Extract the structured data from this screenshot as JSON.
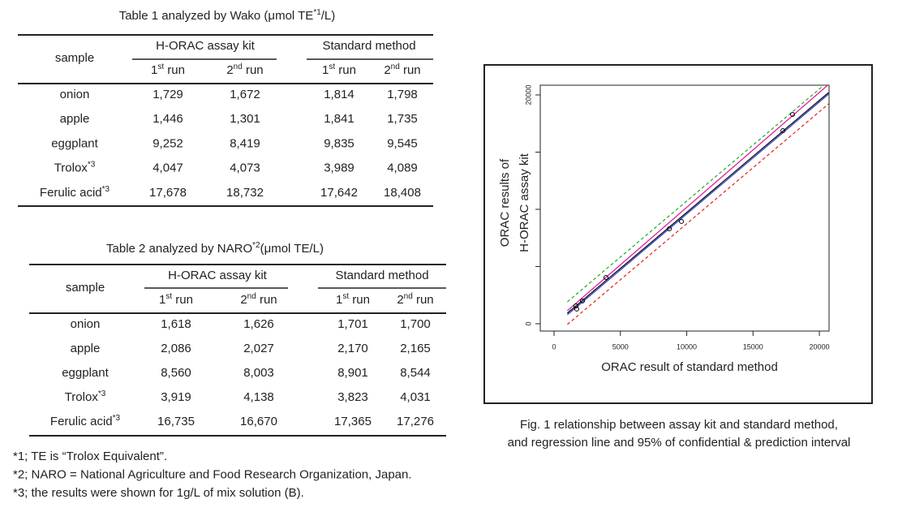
{
  "table1": {
    "title": {
      "text": "Table 1  analyzed by Wako (μmol TE",
      "sup": "*1",
      "tail": "/L)"
    },
    "header": {
      "sample": "sample",
      "groups": [
        "H-ORAC assay kit",
        "Standard method"
      ],
      "runs": [
        {
          "text": "1",
          "sup": "st",
          "tail": " run"
        },
        {
          "text": "2",
          "sup": "nd",
          "tail": " run"
        },
        {
          "text": "1",
          "sup": "st",
          "tail": " run"
        },
        {
          "text": "2",
          "sup": "nd",
          "tail": " run"
        }
      ]
    },
    "rows": [
      [
        "onion",
        "1,729",
        "1,672",
        "1,814",
        "1,798"
      ],
      [
        "apple",
        "1,446",
        "1,301",
        "1,841",
        "1,735"
      ],
      [
        "eggplant",
        "9,252",
        "8,419",
        "9,835",
        "9,545"
      ],
      [
        {
          "text": "Trolox",
          "sup": "*3"
        },
        "4,047",
        "4,073",
        "3,989",
        "4,089"
      ],
      [
        {
          "text": "Ferulic  acid",
          "sup": "*3"
        },
        "17,678",
        "18,732",
        "17,642",
        "18,408"
      ]
    ]
  },
  "table2": {
    "title": {
      "text": "Table 2  analyzed by NARO",
      "sup": "*2",
      "tail": "(μmol TE/L)"
    },
    "header": {
      "sample": "sample",
      "groups": [
        "H-ORAC assay kit",
        "Standard method"
      ],
      "runs": [
        {
          "text": "1",
          "sup": "st",
          "tail": " run"
        },
        {
          "text": "2",
          "sup": "nd",
          "tail": " run"
        },
        {
          "text": "1",
          "sup": "st",
          "tail": " run"
        },
        {
          "text": "2",
          "sup": "nd",
          "tail": " run"
        }
      ]
    },
    "rows": [
      [
        "onion",
        "1,618",
        "1,626",
        "1,701",
        "1,700"
      ],
      [
        "apple",
        "2,086",
        "2,027",
        "2,170",
        "2,165"
      ],
      [
        "eggplant",
        "8,560",
        "8,003",
        "8,901",
        "8,544"
      ],
      [
        {
          "text": "Trolox",
          "sup": "*3"
        },
        "3,919",
        "4,138",
        "3,823",
        "4,031"
      ],
      [
        {
          "text": "Ferulic  acid",
          "sup": "*3"
        },
        "16,735",
        "16,670",
        "17,365",
        "17,276"
      ]
    ]
  },
  "footnotes": [
    "*1; TE is “Trolox  Equivalent”.",
    "*2; NARO = National Agriculture and Food Research Organization, Japan.",
    "*3; the results were shown for 1g/L of mix solution (B)."
  ],
  "chart_data": {
    "type": "scatter",
    "caption": [
      "Fig. 1 relationship between assay kit and standard method,",
      "and regression line and 95% of confidential & prediction interval"
    ],
    "x_label": "ORAC result of standard method",
    "y_label": [
      "ORAC results of",
      "H-ORAC assay kit"
    ],
    "x": [
      1650,
      1710,
      2140,
      3910,
      8690,
      9600,
      17250,
      17980
    ],
    "values": [
      1560,
      1280,
      1990,
      4040,
      8300,
      8940,
      16880,
      18300
    ],
    "color": "#000000",
    "xlim": [
      -1040,
      20730
    ],
    "ylim": [
      -640,
      20850
    ],
    "xticks": [
      0,
      5000,
      10000,
      15000,
      20000
    ],
    "yticks": [
      0,
      {
        "value": 5000,
        "label": null
      },
      {
        "value": 10000,
        "label": null
      },
      {
        "value": 15000,
        "label": null
      },
      20000
    ],
    "series": [
      {
        "color": "#000000",
        "dash": false,
        "x": [
          1000,
          20700
        ],
        "values": [
          920,
          20210
        ]
      },
      {
        "color": "#e0109a",
        "dash": false,
        "x": [
          1000,
          20700
        ],
        "values": [
          1130,
          20920
        ]
      },
      {
        "color": "#2a3cd0",
        "dash": false,
        "x": [
          1000,
          20700
        ],
        "values": [
          780,
          20070
        ]
      },
      {
        "color": "#22aa22",
        "dash": true,
        "x": [
          1000,
          20700
        ],
        "values": [
          1910,
          21200
        ]
      },
      {
        "color": "#e02020",
        "dash": true,
        "x": [
          1000,
          20700
        ],
        "values": [
          -70,
          19220
        ]
      }
    ]
  }
}
